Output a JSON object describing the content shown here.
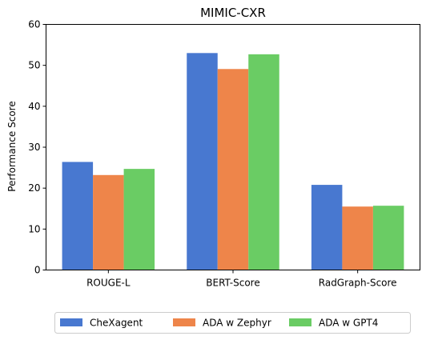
{
  "chart_data": {
    "type": "bar",
    "title": "MIMIC-CXR",
    "xlabel": "",
    "ylabel": "Performance Score",
    "categories": [
      "ROUGE-L",
      "BERT-Score",
      "RadGraph-Score"
    ],
    "ylim": [
      0,
      60
    ],
    "yticks": [
      0,
      10,
      20,
      30,
      40,
      50,
      60
    ],
    "grid": false,
    "legend_position": "bottom-center",
    "series": [
      {
        "name": "CheXagent",
        "color": "#4878d0",
        "values": [
          26.4,
          53.0,
          20.8
        ]
      },
      {
        "name": "ADA w Zephyr",
        "color": "#ee854a",
        "values": [
          23.2,
          49.1,
          15.5
        ]
      },
      {
        "name": "ADA w GPT4",
        "color": "#6acc64",
        "values": [
          24.7,
          52.7,
          15.7
        ]
      }
    ]
  }
}
